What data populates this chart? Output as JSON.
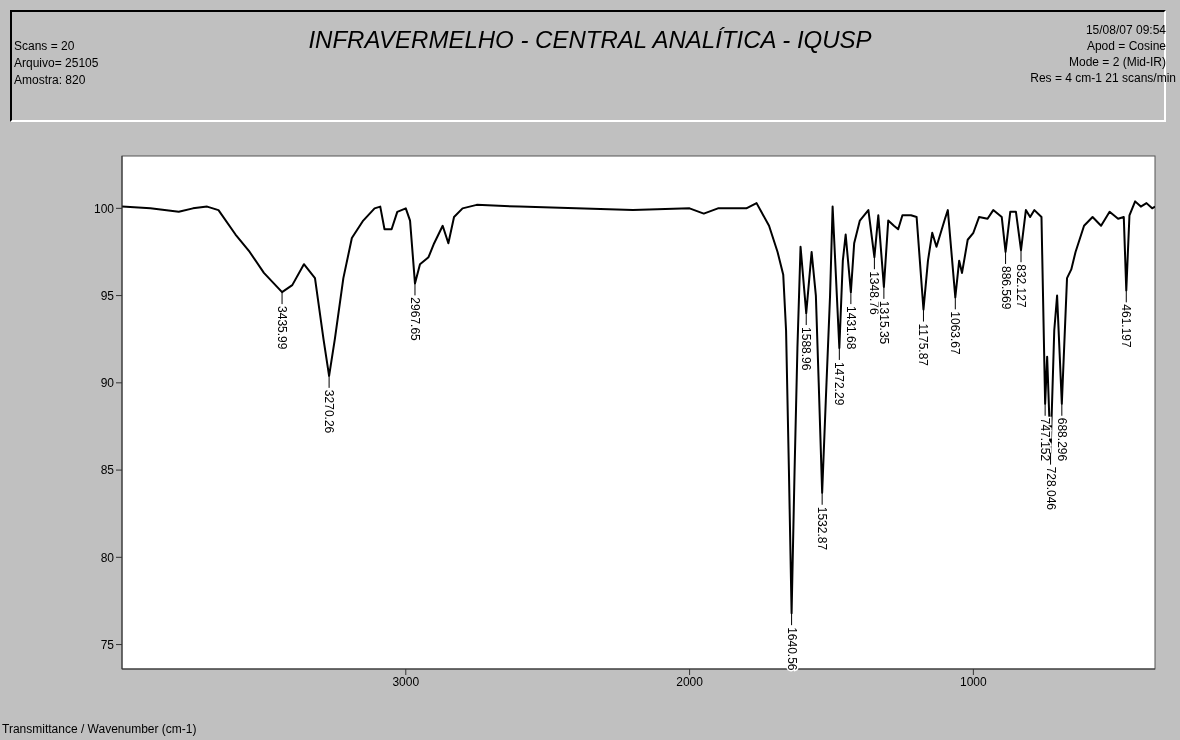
{
  "chart_data": {
    "type": "line",
    "title": "INFRAVERMELHO - CENTRAL ANALÍTICA - IQUSP",
    "annotations": [
      "Scans = 20",
      "Arquivo= 25105",
      "Amostra:  820",
      "15/08/07 09:54",
      "Apod = Cosine",
      "Mode = 2 (Mid-IR)",
      "Res = 4 cm-1    21 scans/min",
      "Transmittance / Wavenumber (cm-1)",
      {
        "text": "3435.99",
        "x": 3435.99,
        "y": 95.2
      },
      {
        "text": "3270.26",
        "x": 3270.26,
        "y": 90.4
      },
      {
        "text": "2967.65",
        "x": 2967.65,
        "y": 95.7
      },
      {
        "text": "1640.56",
        "x": 1640.56,
        "y": 76.8
      },
      {
        "text": "1588.96",
        "x": 1588.96,
        "y": 94.0
      },
      {
        "text": "1532.87",
        "x": 1532.87,
        "y": 83.7
      },
      {
        "text": "1472.29",
        "x": 1472.29,
        "y": 92.0
      },
      {
        "text": "1431.68",
        "x": 1431.68,
        "y": 95.2
      },
      {
        "text": "1348.76",
        "x": 1348.76,
        "y": 97.2
      },
      {
        "text": "1315.35",
        "x": 1315.35,
        "y": 95.5
      },
      {
        "text": "1175.87",
        "x": 1175.87,
        "y": 94.2
      },
      {
        "text": "1063.67",
        "x": 1063.67,
        "y": 94.9
      },
      {
        "text": "886.569",
        "x": 886.569,
        "y": 97.5
      },
      {
        "text": "832.127",
        "x": 832.127,
        "y": 97.6
      },
      {
        "text": "747.152",
        "x": 747.152,
        "y": 88.8
      },
      {
        "text": "728.046",
        "x": 728.046,
        "y": 86.0
      },
      {
        "text": "688.296",
        "x": 688.296,
        "y": 88.8
      },
      {
        "text": "461.197",
        "x": 461.197,
        "y": 95.3
      }
    ],
    "x": [
      4000,
      3900,
      3800,
      3750,
      3700,
      3660,
      3600,
      3550,
      3500,
      3435.99,
      3400,
      3359,
      3320,
      3290,
      3270.26,
      3250,
      3220,
      3190,
      3150,
      3110,
      3090,
      3075,
      3050,
      3030,
      3000,
      2985,
      2967.65,
      2950,
      2920,
      2900,
      2870,
      2850,
      2830,
      2800,
      2750,
      2600,
      2400,
      2200,
      2000,
      1950,
      1900,
      1800,
      1764,
      1720,
      1690,
      1670,
      1660,
      1650,
      1640.56,
      1630,
      1620,
      1609,
      1588.96,
      1570,
      1555,
      1545,
      1532.87,
      1520,
      1505,
      1496,
      1472.29,
      1460,
      1450,
      1431.68,
      1420,
      1400,
      1370,
      1348.76,
      1335,
      1315.35,
      1300,
      1280,
      1265,
      1250,
      1220,
      1200,
      1175.87,
      1160,
      1145,
      1130,
      1100,
      1090,
      1063.67,
      1050,
      1040,
      1020,
      1000,
      980,
      950,
      930,
      900,
      886.569,
      870,
      850,
      832.127,
      815,
      800,
      785,
      760,
      747.152,
      740,
      728.046,
      715,
      705,
      688.296,
      670,
      655,
      640,
      610,
      580,
      550,
      520,
      490,
      470,
      461.197,
      450,
      430,
      410,
      390,
      370,
      360
    ],
    "values": [
      100.1,
      100.0,
      99.8,
      100.0,
      100.1,
      99.9,
      98.5,
      97.5,
      96.3,
      95.2,
      95.6,
      96.8,
      96.0,
      92.5,
      90.4,
      92.5,
      96.0,
      98.3,
      99.3,
      100.0,
      100.1,
      98.8,
      98.8,
      99.8,
      100.0,
      99.3,
      95.7,
      96.8,
      97.2,
      98.0,
      99.0,
      98.0,
      99.5,
      100.0,
      100.2,
      100.1,
      100.0,
      99.9,
      100.0,
      99.7,
      100.0,
      100.0,
      100.3,
      99.0,
      97.5,
      96.2,
      93.0,
      85.0,
      76.8,
      85.0,
      92.0,
      97.8,
      94.0,
      97.5,
      95.0,
      90.0,
      83.7,
      89.0,
      95.0,
      100.1,
      92.0,
      97.0,
      98.5,
      95.2,
      98.0,
      99.3,
      99.9,
      97.2,
      99.6,
      95.5,
      99.3,
      99.0,
      98.8,
      99.6,
      99.6,
      99.5,
      94.2,
      97.0,
      98.6,
      97.8,
      99.4,
      99.9,
      94.9,
      97.0,
      96.3,
      98.2,
      98.6,
      99.5,
      99.4,
      99.9,
      99.5,
      97.5,
      99.8,
      99.8,
      97.6,
      99.9,
      99.5,
      99.9,
      99.5,
      88.8,
      91.5,
      86.0,
      93.0,
      95.0,
      88.8,
      96.0,
      96.5,
      97.5,
      99.0,
      99.5,
      99.0,
      99.8,
      99.4,
      99.5,
      95.3,
      99.6,
      100.4,
      100.1,
      100.3,
      100.0,
      100.1
    ],
    "color": "#000000",
    "xlim": [
      4000,
      360
    ],
    "xticks": [
      3000,
      2000,
      1000
    ],
    "ylim": [
      73.6,
      103
    ],
    "yticks": [
      75,
      80,
      85,
      90,
      95,
      100
    ],
    "marker": "none",
    "line_style": "solid"
  }
}
